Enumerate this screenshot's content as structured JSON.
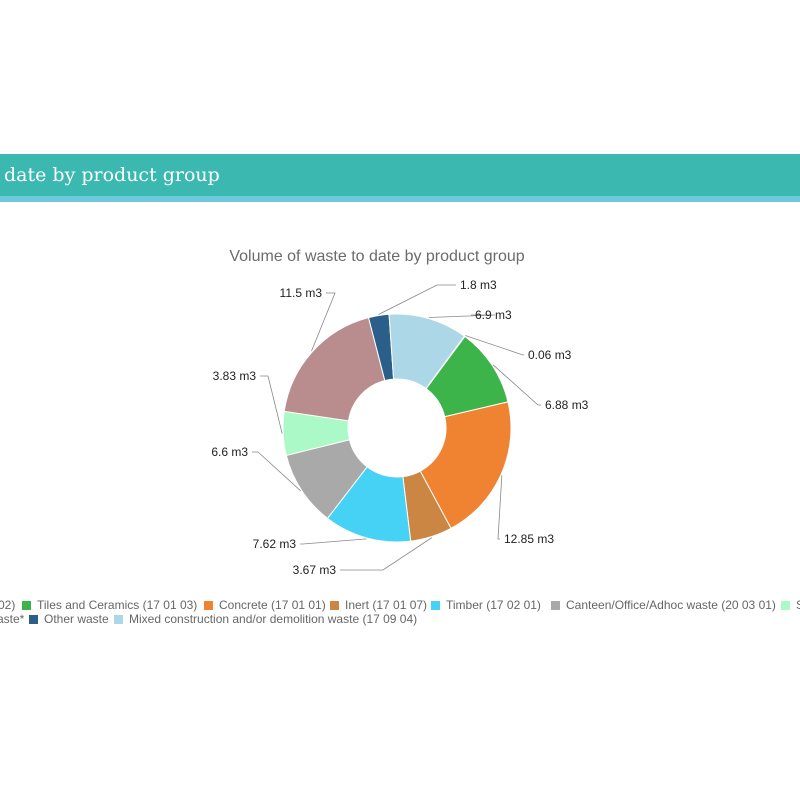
{
  "header": {
    "title": "date by product group"
  },
  "chart_data": {
    "type": "pie",
    "title": "Volume of waste to date by product group",
    "unit": "m3",
    "slices": [
      {
        "name": "Other waste",
        "value": 1.8,
        "label": "1.8 m3",
        "color": "#2b5f8a"
      },
      {
        "name": "Mixed construction and/or demolition waste (17 09 04)",
        "value": 6.9,
        "label": "6.9 m3",
        "color": "#acd7e6"
      },
      {
        "value": 0.06,
        "label": "0.06 m3",
        "color": "#9dd9b8"
      },
      {
        "name": "Tiles and Ceramics (17 01 03)",
        "value": 6.88,
        "label": "6.88 m3",
        "color": "#3cb44a"
      },
      {
        "name": "Concrete (17 01 01)",
        "value": 12.85,
        "label": "12.85 m3",
        "color": "#f08331"
      },
      {
        "name": "Inert (17 01 07)",
        "value": 3.67,
        "label": "3.67 m3",
        "color": "#cc8644"
      },
      {
        "name": "Timber (17 02 01)",
        "value": 7.62,
        "label": "7.62 m3",
        "color": "#45d2f4"
      },
      {
        "name": "Canteen/Office/Adhoc waste (20 03 01)",
        "value": 6.6,
        "label": "6.6 m3",
        "color": "#a9a9a9"
      },
      {
        "value": 3.83,
        "label": "3.83 m3",
        "color": "#aaf9c6"
      },
      {
        "value": 11.5,
        "label": "11.5 m3",
        "color": "#b98d8d"
      }
    ],
    "legend": {
      "row1": [
        {
          "text": "02)",
          "color": null
        },
        {
          "text": "Tiles and Ceramics (17 01 03)",
          "color": "#3cb44a"
        },
        {
          "text": "Concrete (17 01 01)",
          "color": "#f08331"
        },
        {
          "text": "Inert (17 01 07)",
          "color": "#cc8644"
        },
        {
          "text": "Timber (17 02 01)",
          "color": "#45d2f4"
        },
        {
          "text": "Canteen/Office/Adhoc waste (20 03 01)",
          "color": "#a9a9a9"
        },
        {
          "text": "S",
          "color": "#aaf9c6"
        }
      ],
      "row2": [
        {
          "text": "aste*",
          "color": null
        },
        {
          "text": "Other waste",
          "color": "#2b5f8a"
        },
        {
          "text": "Mixed construction and/or demolition waste (17 09 04)",
          "color": "#acd7e6"
        }
      ]
    }
  }
}
